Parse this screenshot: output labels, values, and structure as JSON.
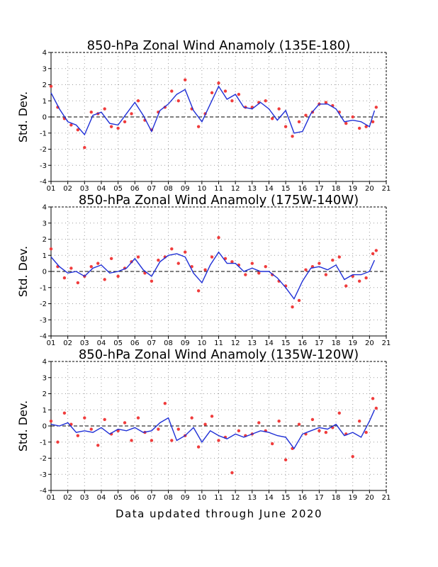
{
  "footer": "Data updated through June 2020",
  "x_tick_labels": [
    "01",
    "02",
    "03",
    "04",
    "05",
    "06",
    "07",
    "08",
    "09",
    "10",
    "11",
    "12",
    "13",
    "14",
    "15",
    "16",
    "17",
    "18",
    "19",
    "20",
    "21"
  ],
  "colors": {
    "monthly_points": "#f03c3c",
    "smoothed_line": "#1f2fd6",
    "grid": "#9a9a9a",
    "axes": "#000000"
  },
  "chart_data": [
    {
      "type": "line",
      "title": "850-hPa Zonal Wind Anamoly (135E-180)",
      "ylabel": "Std. Dev.",
      "ylim": [
        -4,
        4
      ],
      "yticks": [
        -4,
        -3,
        -2,
        -1,
        0,
        1,
        2,
        3,
        4
      ],
      "xlim": [
        2001,
        2021
      ],
      "grid": true,
      "zero_line": "dashed",
      "series": [
        {
          "kind": "monthly points",
          "x": [
            2001.0,
            2001.4,
            2001.8,
            2002.2,
            2002.6,
            2003.0,
            2003.4,
            2003.8,
            2004.2,
            2004.6,
            2005.0,
            2005.4,
            2005.8,
            2006.2,
            2006.6,
            2007.0,
            2007.4,
            2007.8,
            2008.2,
            2008.6,
            2009.0,
            2009.4,
            2009.8,
            2010.2,
            2010.6,
            2011.0,
            2011.4,
            2011.8,
            2012.2,
            2012.6,
            2013.0,
            2013.4,
            2013.8,
            2014.2,
            2014.6,
            2015.0,
            2015.4,
            2015.8,
            2016.2,
            2016.6,
            2017.0,
            2017.4,
            2017.8,
            2018.2,
            2018.6,
            2019.0,
            2019.4,
            2019.8,
            2020.2,
            2020.4
          ],
          "values": [
            1.9,
            0.6,
            -0.1,
            -0.5,
            -0.8,
            -1.9,
            0.3,
            0.2,
            0.5,
            -0.6,
            -0.7,
            -0.3,
            0.2,
            1.0,
            -0.2,
            -0.8,
            0.3,
            0.6,
            1.6,
            1.0,
            2.3,
            0.5,
            -0.6,
            0.2,
            1.5,
            2.1,
            1.6,
            1.0,
            1.4,
            0.6,
            0.6,
            0.9,
            1.0,
            -0.1,
            0.5,
            -0.6,
            -1.2,
            -0.3,
            0.1,
            0.3,
            0.8,
            0.9,
            0.7,
            0.3,
            -0.4,
            0.0,
            -0.7,
            -0.6,
            -0.3,
            0.6
          ]
        },
        {
          "kind": "smoothed",
          "x": [
            2001.0,
            2001.5,
            2002.0,
            2002.5,
            2003.0,
            2003.5,
            2004.0,
            2004.5,
            2005.0,
            2005.5,
            2006.0,
            2006.5,
            2007.0,
            2007.5,
            2008.0,
            2008.5,
            2009.0,
            2009.5,
            2010.0,
            2010.5,
            2011.0,
            2011.5,
            2012.0,
            2012.5,
            2013.0,
            2013.5,
            2014.0,
            2014.5,
            2015.0,
            2015.5,
            2016.0,
            2016.5,
            2017.0,
            2017.5,
            2018.0,
            2018.5,
            2019.0,
            2019.5,
            2020.0,
            2020.3
          ],
          "values": [
            1.5,
            0.5,
            -0.3,
            -0.5,
            -1.1,
            0.1,
            0.3,
            -0.4,
            -0.5,
            0.2,
            0.9,
            0.1,
            -0.9,
            0.4,
            0.8,
            1.4,
            1.7,
            0.4,
            -0.3,
            0.8,
            1.9,
            1.1,
            1.4,
            0.6,
            0.5,
            0.9,
            0.5,
            -0.2,
            0.4,
            -1.0,
            -0.9,
            0.2,
            0.8,
            0.8,
            0.5,
            -0.3,
            -0.2,
            -0.3,
            -0.6,
            0.4
          ]
        }
      ]
    },
    {
      "type": "line",
      "title": "850-hPa Zonal Wind Anamoly (175W-140W)",
      "ylabel": "Std. Dev.",
      "ylim": [
        -4,
        4
      ],
      "yticks": [
        -4,
        -3,
        -2,
        -1,
        0,
        1,
        2,
        3,
        4
      ],
      "xlim": [
        2001,
        2021
      ],
      "grid": true,
      "zero_line": "dashed",
      "series": [
        {
          "kind": "monthly points",
          "x": [
            2001.0,
            2001.4,
            2001.8,
            2002.2,
            2002.6,
            2003.0,
            2003.4,
            2003.8,
            2004.2,
            2004.6,
            2005.0,
            2005.4,
            2005.8,
            2006.2,
            2006.6,
            2007.0,
            2007.4,
            2007.8,
            2008.2,
            2008.6,
            2009.0,
            2009.4,
            2009.8,
            2010.2,
            2010.6,
            2011.0,
            2011.4,
            2011.8,
            2012.2,
            2012.6,
            2013.0,
            2013.4,
            2013.8,
            2014.2,
            2014.6,
            2015.0,
            2015.4,
            2015.8,
            2016.2,
            2016.6,
            2017.0,
            2017.4,
            2017.8,
            2018.2,
            2018.6,
            2019.0,
            2019.4,
            2019.8,
            2020.2,
            2020.4
          ],
          "values": [
            1.4,
            0.3,
            -0.4,
            0.2,
            -0.7,
            -0.3,
            0.3,
            0.5,
            -0.5,
            0.8,
            -0.3,
            0.2,
            0.6,
            0.9,
            -0.1,
            -0.6,
            0.7,
            0.9,
            1.4,
            0.5,
            1.2,
            0.3,
            -1.2,
            0.1,
            0.9,
            2.1,
            0.8,
            0.6,
            0.4,
            -0.2,
            0.5,
            -0.1,
            0.3,
            -0.2,
            -0.6,
            -0.9,
            -2.2,
            -1.8,
            0.1,
            0.3,
            0.5,
            -0.2,
            0.7,
            0.9,
            -0.9,
            -0.3,
            -0.6,
            -0.4,
            1.1,
            1.3
          ]
        },
        {
          "kind": "smoothed",
          "x": [
            2001.0,
            2001.5,
            2002.0,
            2002.5,
            2003.0,
            2003.5,
            2004.0,
            2004.5,
            2005.0,
            2005.5,
            2006.0,
            2006.5,
            2007.0,
            2007.5,
            2008.0,
            2008.5,
            2009.0,
            2009.5,
            2010.0,
            2010.5,
            2011.0,
            2011.5,
            2012.0,
            2012.5,
            2013.0,
            2013.5,
            2014.0,
            2014.5,
            2015.0,
            2015.5,
            2016.0,
            2016.5,
            2017.0,
            2017.5,
            2018.0,
            2018.5,
            2019.0,
            2019.5,
            2020.0,
            2020.3
          ],
          "values": [
            0.9,
            0.3,
            -0.1,
            0.0,
            -0.3,
            0.2,
            0.4,
            -0.1,
            0.0,
            0.2,
            0.8,
            0.1,
            -0.3,
            0.6,
            1.0,
            1.1,
            0.9,
            -0.1,
            -0.7,
            0.4,
            1.2,
            0.5,
            0.5,
            0.0,
            0.2,
            0.0,
            0.0,
            -0.4,
            -1.0,
            -1.7,
            -0.6,
            0.2,
            0.3,
            0.1,
            0.4,
            -0.5,
            -0.2,
            -0.2,
            0.0,
            0.7
          ]
        }
      ]
    },
    {
      "type": "line",
      "title": "850-hPa Zonal Wind Anamoly (135W-120W)",
      "ylabel": "Std. Dev.",
      "ylim": [
        -4,
        4
      ],
      "yticks": [
        -4,
        -3,
        -2,
        -1,
        0,
        1,
        2,
        3,
        4
      ],
      "xlim": [
        2001,
        2021
      ],
      "grid": true,
      "zero_line": "dashed",
      "series": [
        {
          "kind": "monthly points",
          "x": [
            2001.0,
            2001.4,
            2001.8,
            2002.2,
            2002.6,
            2003.0,
            2003.4,
            2003.8,
            2004.2,
            2004.6,
            2005.0,
            2005.4,
            2005.8,
            2006.2,
            2006.6,
            2007.0,
            2007.4,
            2007.8,
            2008.2,
            2008.6,
            2009.0,
            2009.4,
            2009.8,
            2010.2,
            2010.6,
            2011.0,
            2011.4,
            2011.8,
            2012.2,
            2012.6,
            2013.0,
            2013.4,
            2013.8,
            2014.2,
            2014.6,
            2015.0,
            2015.4,
            2015.8,
            2016.2,
            2016.6,
            2017.0,
            2017.4,
            2017.8,
            2018.2,
            2018.6,
            2019.0,
            2019.4,
            2019.8,
            2020.2,
            2020.4
          ],
          "values": [
            0.3,
            -1.0,
            0.8,
            0.1,
            -0.6,
            0.5,
            -0.2,
            -1.2,
            0.4,
            -0.5,
            -0.3,
            0.2,
            -0.9,
            0.5,
            -0.4,
            -0.9,
            -0.2,
            1.4,
            -0.9,
            -0.2,
            -0.6,
            0.5,
            -1.3,
            0.1,
            0.6,
            -0.9,
            -0.7,
            -2.9,
            -0.3,
            -0.6,
            -0.5,
            0.2,
            -0.3,
            -1.1,
            0.3,
            -2.1,
            -1.4,
            0.1,
            -0.5,
            0.4,
            -0.3,
            -0.4,
            -0.1,
            0.8,
            -0.5,
            -1.9,
            0.3,
            -0.4,
            1.7,
            1.1
          ]
        },
        {
          "kind": "smoothed",
          "x": [
            2001.0,
            2001.5,
            2002.0,
            2002.5,
            2003.0,
            2003.5,
            2004.0,
            2004.5,
            2005.0,
            2005.5,
            2006.0,
            2006.5,
            2007.0,
            2007.5,
            2008.0,
            2008.5,
            2009.0,
            2009.5,
            2010.0,
            2010.5,
            2011.0,
            2011.5,
            2012.0,
            2012.5,
            2013.0,
            2013.5,
            2014.0,
            2014.5,
            2015.0,
            2015.5,
            2016.0,
            2016.5,
            2017.0,
            2017.5,
            2018.0,
            2018.5,
            2019.0,
            2019.5,
            2020.0,
            2020.3
          ],
          "values": [
            0.1,
            0.0,
            0.2,
            -0.4,
            -0.3,
            -0.4,
            -0.1,
            -0.5,
            -0.2,
            -0.3,
            -0.1,
            -0.4,
            -0.3,
            0.2,
            0.5,
            -0.9,
            -0.6,
            -0.1,
            -1.0,
            -0.3,
            -0.6,
            -0.8,
            -0.5,
            -0.7,
            -0.5,
            -0.3,
            -0.4,
            -0.6,
            -0.7,
            -1.4,
            -0.5,
            -0.3,
            -0.1,
            -0.2,
            0.1,
            -0.6,
            -0.4,
            -0.7,
            0.3,
            1.0
          ]
        }
      ]
    }
  ]
}
